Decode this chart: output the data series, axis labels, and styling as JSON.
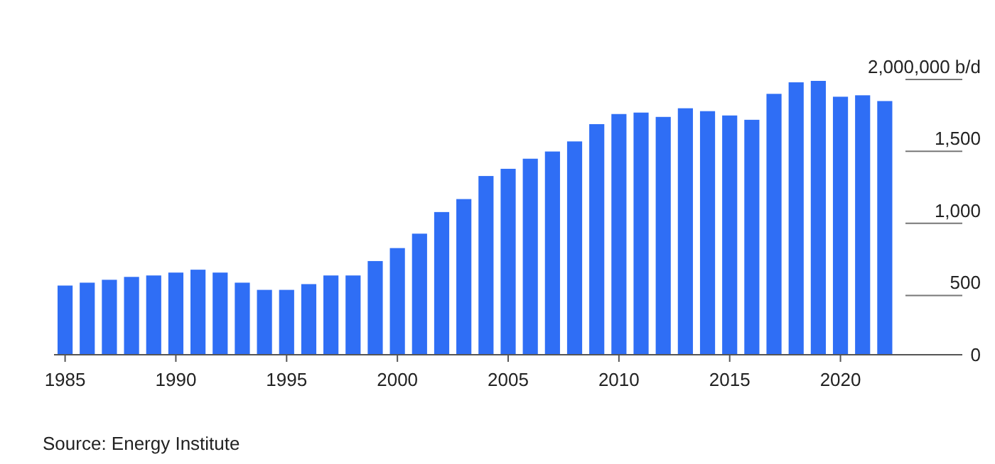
{
  "chart_data": {
    "type": "bar",
    "x": [
      1985,
      1986,
      1987,
      1988,
      1989,
      1990,
      1991,
      1992,
      1993,
      1994,
      1995,
      1996,
      1997,
      1998,
      1999,
      2000,
      2001,
      2002,
      2003,
      2004,
      2005,
      2006,
      2007,
      2008,
      2009,
      2010,
      2011,
      2012,
      2013,
      2014,
      2015,
      2016,
      2017,
      2018,
      2019,
      2020,
      2021,
      2022
    ],
    "values": [
      480,
      500,
      520,
      540,
      550,
      570,
      590,
      570,
      500,
      450,
      450,
      490,
      550,
      550,
      650,
      740,
      840,
      990,
      1080,
      1240,
      1290,
      1360,
      1410,
      1480,
      1600,
      1670,
      1680,
      1650,
      1710,
      1690,
      1660,
      1630,
      1810,
      1890,
      1900,
      1790,
      1800,
      1760
    ],
    "color": "#2f6ef5",
    "xlim": [
      1984.5,
      2025.5
    ],
    "xticks": [
      1985,
      1990,
      1995,
      2000,
      2005,
      2010,
      2015,
      2020
    ],
    "ylim": [
      0,
      1900
    ],
    "yticks": [
      0,
      500,
      {
        "value": 1000,
        "label": "1,000"
      },
      {
        "value": 1500,
        "label": "1,500"
      }
    ],
    "ylabel": "2,000,000 b/d",
    "grid": false,
    "annotations": [
      "Source: Energy Institute"
    ]
  }
}
